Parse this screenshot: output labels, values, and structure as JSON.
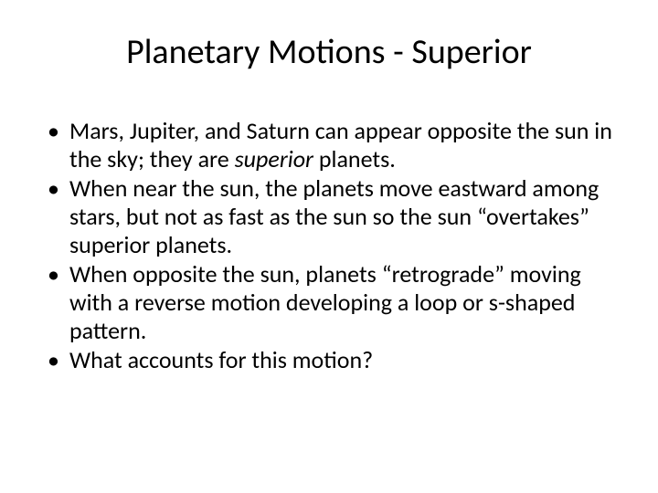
{
  "slide": {
    "title": "Planetary Motions - Superior",
    "bullets": [
      {
        "pre": "Mars, Jupiter, and Saturn can appear opposite the sun in the sky; they are ",
        "em": "superior",
        "post": " planets."
      },
      {
        "pre": "When near the sun, the planets move eastward among stars, but not as fast as the sun so the sun “overtakes” superior planets.",
        "em": "",
        "post": ""
      },
      {
        "pre": "When opposite the sun, planets “retrograde” moving with a reverse motion developing a loop or s-shaped pattern.",
        "em": "",
        "post": ""
      },
      {
        "pre": "What accounts for this motion?",
        "em": "",
        "post": ""
      }
    ]
  },
  "style": {
    "background_color": "#ffffff",
    "text_color": "#000000",
    "title_fontsize": 38,
    "body_fontsize": 26,
    "font_family": "Calibri"
  }
}
